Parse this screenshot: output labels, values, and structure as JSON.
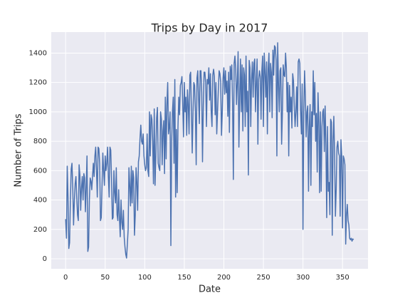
{
  "chart_data": {
    "type": "line",
    "title": "Trips by Day in 2017",
    "x_label": "Date",
    "y_label": "Number of Trips",
    "x": [
      0,
      1,
      2,
      3,
      4,
      5,
      6,
      7,
      8,
      9,
      10,
      11,
      12,
      13,
      14,
      15,
      16,
      17,
      18,
      19,
      20,
      21,
      22,
      23,
      24,
      25,
      26,
      27,
      28,
      29,
      30,
      31,
      32,
      33,
      34,
      35,
      36,
      37,
      38,
      39,
      40,
      41,
      42,
      43,
      44,
      45,
      46,
      47,
      48,
      49,
      50,
      51,
      52,
      53,
      54,
      55,
      56,
      57,
      58,
      59,
      60,
      61,
      62,
      63,
      64,
      65,
      66,
      67,
      68,
      69,
      70,
      71,
      72,
      73,
      74,
      75,
      76,
      77,
      78,
      79,
      80,
      81,
      82,
      83,
      84,
      85,
      86,
      87,
      88,
      89,
      90,
      91,
      92,
      93,
      94,
      95,
      96,
      97,
      98,
      99,
      100,
      101,
      102,
      103,
      104,
      105,
      106,
      107,
      108,
      109,
      110,
      111,
      112,
      113,
      114,
      115,
      116,
      117,
      118,
      119,
      120,
      121,
      122,
      123,
      124,
      125,
      126,
      127,
      128,
      129,
      130,
      131,
      132,
      133,
      134,
      135,
      136,
      137,
      138,
      139,
      140,
      141,
      142,
      143,
      144,
      145,
      146,
      147,
      148,
      149,
      150,
      151,
      152,
      153,
      154,
      155,
      156,
      157,
      158,
      159,
      160,
      161,
      162,
      163,
      164,
      165,
      166,
      167,
      168,
      169,
      170,
      171,
      172,
      173,
      174,
      175,
      176,
      177,
      178,
      179,
      180,
      181,
      182,
      183,
      184,
      185,
      186,
      187,
      188,
      189,
      190,
      191,
      192,
      193,
      194,
      195,
      196,
      197,
      198,
      199,
      200,
      201,
      202,
      203,
      204,
      205,
      206,
      207,
      208,
      209,
      210,
      211,
      212,
      213,
      214,
      215,
      216,
      217,
      218,
      219,
      220,
      221,
      222,
      223,
      224,
      225,
      226,
      227,
      228,
      229,
      230,
      231,
      232,
      233,
      234,
      235,
      236,
      237,
      238,
      239,
      240,
      241,
      242,
      243,
      244,
      245,
      246,
      247,
      248,
      249,
      250,
      251,
      252,
      253,
      254,
      255,
      256,
      257,
      258,
      259,
      260,
      261,
      262,
      263,
      264,
      265,
      266,
      267,
      268,
      269,
      270,
      271,
      272,
      273,
      274,
      275,
      276,
      277,
      278,
      279,
      280,
      281,
      282,
      283,
      284,
      285,
      286,
      287,
      288,
      289,
      290,
      291,
      292,
      293,
      294,
      295,
      296,
      297,
      298,
      299,
      300,
      301,
      302,
      303,
      304,
      305,
      306,
      307,
      308,
      309,
      310,
      311,
      312,
      313,
      314,
      315,
      316,
      317,
      318,
      319,
      320,
      321,
      322,
      323,
      324,
      325,
      326,
      327,
      328,
      329,
      330,
      331,
      332,
      333,
      334,
      335,
      336,
      337,
      338,
      339,
      340,
      341,
      342,
      343,
      344,
      345,
      346,
      347,
      348,
      349,
      350,
      351,
      352,
      353,
      354,
      355,
      356,
      357,
      358,
      359,
      360,
      361,
      362,
      363,
      364
    ],
    "series": [
      {
        "color": "#4c72b0",
        "values": [
          270,
          140,
          630,
          420,
          70,
          110,
          400,
          610,
          650,
          480,
          230,
          390,
          510,
          560,
          420,
          300,
          260,
          640,
          570,
          330,
          480,
          560,
          400,
          580,
          550,
          320,
          490,
          700,
          50,
          80,
          400,
          550,
          530,
          470,
          560,
          650,
          560,
          700,
          760,
          600,
          420,
          760,
          750,
          650,
          260,
          280,
          500,
          720,
          600,
          500,
          700,
          600,
          650,
          760,
          560,
          420,
          760,
          740,
          550,
          270,
          280,
          600,
          450,
          380,
          620,
          300,
          260,
          470,
          280,
          150,
          400,
          250,
          200,
          330,
          150,
          80,
          30,
          5,
          100,
          200,
          620,
          500,
          360,
          630,
          380,
          600,
          550,
          160,
          300,
          620,
          520,
          330,
          660,
          700,
          820,
          910,
          800,
          780,
          850,
          700,
          640,
          600,
          620,
          850,
          600,
          560,
          1000,
          700,
          980,
          950,
          800,
          510,
          1020,
          500,
          700,
          960,
          1030,
          650,
          620,
          600,
          1000,
          950,
          640,
          870,
          940,
          580,
          1100,
          680,
          1050,
          1200,
          850,
          900,
          1000,
          90,
          800,
          1000,
          1100,
          650,
          1220,
          420,
          880,
          450,
          900,
          1100,
          980,
          1180,
          1200,
          1240,
          1050,
          830,
          1200,
          1000,
          1100,
          840,
          1150,
          1050,
          850,
          1250,
          1270,
          1000,
          720,
          1000,
          1200,
          1180,
          1000,
          640,
          1230,
          1280,
          1100,
          920,
          1280,
          1280,
          1130,
          660,
          1040,
          1270,
          1270,
          1200,
          900,
          1220,
          1190,
          1300,
          1080,
          1260,
          1000,
          900,
          1250,
          1290,
          1240,
          980,
          1200,
          850,
          1000,
          1150,
          1280,
          1260,
          1200,
          840,
          1000,
          1230,
          1300,
          1120,
          1280,
          1130,
          1210,
          970,
          1270,
          860,
          1310,
          1220,
          1320,
          1060,
          540,
          1330,
          1380,
          1290,
          1050,
          1200,
          1410,
          760,
          1100,
          1360,
          1000,
          1320,
          870,
          1300,
          1250,
          900,
          1380,
          1000,
          1140,
          570,
          1350,
          1300,
          900,
          1220,
          1340,
          1100,
          1330,
          1360,
          1000,
          1200,
          1360,
          780,
          1220,
          1280,
          1240,
          950,
          1280,
          1380,
          900,
          1400,
          1280,
          1100,
          1340,
          850,
          1290,
          1400,
          1000,
          1330,
          1270,
          960,
          1420,
          1250,
          1450,
          1440,
          1350,
          700,
          1470,
          1200,
          1000,
          1280,
          1300,
          780,
          1000,
          1320,
          1250,
          1240,
          1400,
          1300,
          1000,
          1200,
          700,
          1180,
          1000,
          1100,
          890,
          1260,
          1210,
          1040,
          900,
          1000,
          1170,
          900,
          1340,
          1360,
          1330,
          1000,
          850,
          1190,
          200,
          1000,
          1280,
          1110,
          830,
          1000,
          1040,
          460,
          900,
          1050,
          500,
          1000,
          900,
          1280,
          980,
          1200,
          800,
          990,
          590,
          1130,
          930,
          450,
          1000,
          460,
          900,
          1000,
          1020,
          730,
          1040,
          780,
          280,
          900,
          460,
          520,
          300,
          950,
          930,
          160,
          800,
          970,
          700,
          290,
          470,
          760,
          800,
          720,
          700,
          290,
          810,
          700,
          210,
          700,
          680,
          640,
          100,
          300,
          370,
          260,
          230,
          140,
          130,
          140,
          120,
          135,
          130
        ]
      }
    ],
    "xlim": [
      -18.2,
      382.2
    ],
    "ylim": [
      -68,
      1543
    ],
    "xticks": [
      0,
      50,
      100,
      150,
      200,
      250,
      300,
      350
    ],
    "yticks": [
      0,
      200,
      400,
      600,
      800,
      1000,
      1200,
      1400
    ],
    "grid": true
  }
}
